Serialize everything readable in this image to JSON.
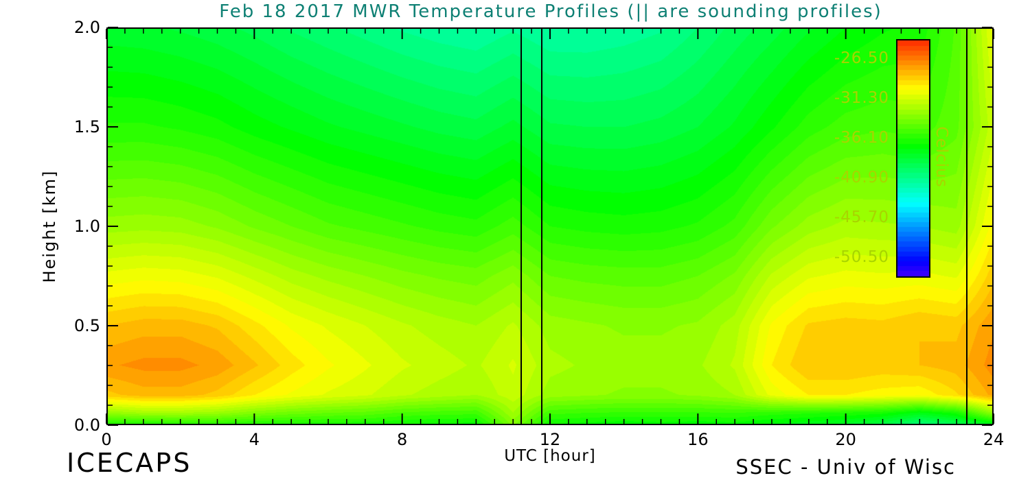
{
  "title": "Feb 18 2017 MWR Temperature Profiles (|| are sounding profiles)",
  "axes": {
    "xlabel": "UTC [hour]",
    "ylabel": "Height [km]",
    "x_tick_labels": [
      "0",
      "4",
      "8",
      "12",
      "16",
      "20",
      "24"
    ],
    "y_tick_labels": [
      "0.0",
      "0.5",
      "1.0",
      "1.5",
      "2.0"
    ]
  },
  "footer": {
    "left": "ICECAPS",
    "right": "SSEC - Univ of Wisc"
  },
  "colorbar": {
    "label": "Celcius",
    "tick_labels": [
      "-26.50",
      "-31.30",
      "-36.10",
      "-40.90",
      "-45.70",
      "-50.50"
    ],
    "tick_values": [
      -26.5,
      -31.3,
      -36.1,
      -40.9,
      -45.7,
      -50.5
    ],
    "min": -52.9,
    "max": -24.1,
    "text_color": "#a8d400"
  },
  "colors": {
    "title": "#0e8074",
    "axis": "#000000",
    "sounding_line": "#000000",
    "background": "#ffffff"
  },
  "chart_data": {
    "type": "heatmap",
    "title": "Feb 18 2017 MWR Temperature Profiles (|| are sounding profiles)",
    "xlabel": "UTC [hour]",
    "ylabel": "Height [km]",
    "values_unit": "Celcius",
    "xlim": [
      0,
      24
    ],
    "ylim": [
      0,
      2
    ],
    "x_major_ticks": [
      0,
      4,
      8,
      12,
      16,
      20,
      24
    ],
    "x_minor_step": 0.5,
    "y_major_ticks": [
      0,
      0.5,
      1,
      1.5,
      2
    ],
    "y_minor_step": 0.1,
    "colorbar_range": [
      -52.9,
      -24.1
    ],
    "color_levels": 48,
    "colormap": "rainbow",
    "sounding_times": [
      11.2,
      11.75,
      23.25
    ],
    "x": [
      0,
      1,
      2,
      3,
      4,
      5,
      6,
      7,
      8,
      9,
      10,
      11,
      12,
      13,
      14,
      15,
      16,
      17,
      18,
      19,
      20,
      21,
      22,
      23,
      24
    ],
    "y": [
      0.0,
      0.06,
      0.15,
      0.3,
      0.5,
      0.75,
      1.0,
      1.5,
      2.0
    ],
    "values": [
      [
        -36.5,
        -36.5,
        -36.3,
        -36.2,
        -36.4,
        -36.5,
        -36.6,
        -36.6,
        -36.8,
        -37.0,
        -37.0,
        -33.5,
        -36.8,
        -37.0,
        -37.2,
        -37.0,
        -37.2,
        -37.0,
        -37.5,
        -37.8,
        -38.2,
        -39.0,
        -40.5,
        -39.5,
        -38.0
      ],
      [
        -33.0,
        -32.5,
        -32.5,
        -32.8,
        -33.5,
        -34.0,
        -34.3,
        -34.5,
        -35.0,
        -35.2,
        -35.3,
        -32.5,
        -35.3,
        -35.5,
        -35.6,
        -35.6,
        -35.6,
        -35.5,
        -35.8,
        -36.0,
        -36.2,
        -36.5,
        -37.5,
        -36.5,
        -33.0
      ],
      [
        -28.5,
        -28.0,
        -28.0,
        -28.5,
        -29.5,
        -30.2,
        -30.8,
        -31.2,
        -31.8,
        -32.2,
        -32.5,
        -31.5,
        -32.8,
        -33.0,
        -33.2,
        -33.2,
        -33.0,
        -32.5,
        -30.5,
        -29.5,
        -29.5,
        -29.8,
        -30.0,
        -29.0,
        -27.5
      ],
      [
        -27.2,
        -26.9,
        -26.9,
        -27.3,
        -28.2,
        -29.2,
        -30.0,
        -30.6,
        -31.2,
        -31.6,
        -32.0,
        -31.2,
        -32.3,
        -32.6,
        -32.8,
        -32.8,
        -32.6,
        -31.8,
        -29.5,
        -28.3,
        -28.3,
        -28.5,
        -28.3,
        -28.0,
        -26.8
      ],
      [
        -28.3,
        -28.0,
        -28.0,
        -28.4,
        -29.3,
        -30.2,
        -30.8,
        -31.3,
        -31.8,
        -32.2,
        -32.5,
        -31.8,
        -32.8,
        -33.0,
        -33.2,
        -33.2,
        -33.0,
        -32.2,
        -30.0,
        -28.8,
        -28.6,
        -28.7,
        -28.3,
        -28.5,
        -27.2
      ],
      [
        -30.5,
        -30.3,
        -30.4,
        -30.8,
        -31.5,
        -32.2,
        -32.7,
        -33.1,
        -33.5,
        -33.8,
        -34.0,
        -33.3,
        -34.3,
        -34.5,
        -34.6,
        -34.6,
        -34.3,
        -33.6,
        -31.8,
        -30.8,
        -30.5,
        -30.6,
        -30.5,
        -30.8,
        -28.5
      ],
      [
        -32.8,
        -32.7,
        -32.8,
        -33.2,
        -33.8,
        -34.3,
        -34.8,
        -35.1,
        -35.4,
        -35.7,
        -35.9,
        -35.2,
        -36.1,
        -36.3,
        -36.4,
        -36.3,
        -36.0,
        -35.3,
        -33.8,
        -32.8,
        -32.3,
        -32.4,
        -32.5,
        -32.8,
        -29.8
      ],
      [
        -36.0,
        -36.0,
        -36.2,
        -36.5,
        -37.0,
        -37.4,
        -37.8,
        -38.1,
        -38.4,
        -38.7,
        -38.9,
        -38.3,
        -39.0,
        -39.1,
        -39.1,
        -38.9,
        -38.5,
        -37.8,
        -36.8,
        -35.8,
        -35.2,
        -35.0,
        -35.2,
        -34.5,
        -31.5
      ],
      [
        -38.3,
        -38.4,
        -38.6,
        -38.9,
        -39.3,
        -39.8,
        -40.2,
        -40.6,
        -41.0,
        -41.3,
        -41.5,
        -41.0,
        -41.5,
        -41.5,
        -41.3,
        -41.0,
        -40.3,
        -39.5,
        -38.8,
        -38.0,
        -37.3,
        -36.8,
        -36.5,
        -34.8,
        -30.5
      ]
    ]
  }
}
